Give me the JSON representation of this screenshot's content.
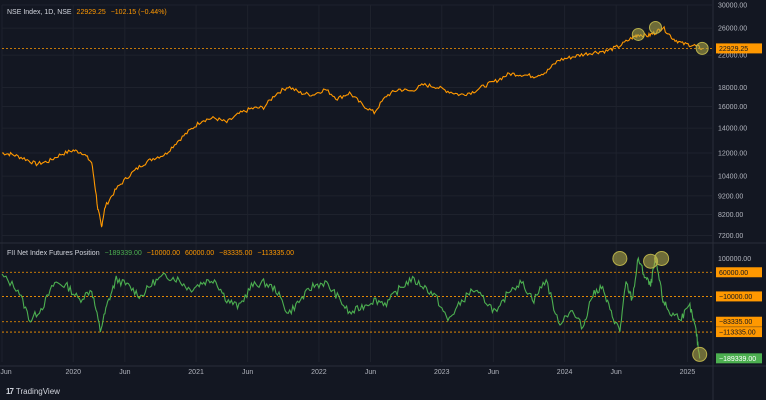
{
  "colors": {
    "background": "#131722",
    "price_line": "#ff9800",
    "indicator_line": "#4caf50",
    "grid": "#1e222d",
    "axis_text": "#b2b5be",
    "separator": "#2a2e39",
    "ref_line": "#ff9800",
    "highlight": "#b8b04a"
  },
  "header": {
    "symbol": "NSE Index, 1D, NSE",
    "last_price": "22929.25",
    "change": "−102.15 (−0.44%)"
  },
  "indicator_header": {
    "name": "FII Net Index Futures Position",
    "values": [
      "−189339.00",
      "−10000.00",
      "60000.00",
      "−83335.00",
      "−113335.00"
    ]
  },
  "footer": {
    "brand": "TradingView",
    "brand_icon": "tradingview-logo-icon"
  },
  "chart_data": [
    {
      "type": "line",
      "title": "NSE Index, 1D, NSE",
      "scale": "log",
      "ylim": [
        7000,
        30000
      ],
      "y_ticks": [
        "30000.00",
        "26000.00",
        "22000.00",
        "18000.00",
        "16000.00",
        "14000.00",
        "12000.00",
        "10400.00",
        "9200.00",
        "8200.00",
        "7200.00"
      ],
      "x_ticks": [
        "Jun",
        "2020",
        "Jun",
        "2021",
        "Jun",
        "2022",
        "Jun",
        "2023",
        "Jun",
        "2024",
        "Jun",
        "2025"
      ],
      "last_value_label": "22929.25",
      "series": [
        {
          "x": [
            2019.42,
            2019.5,
            2019.6,
            2019.7,
            2019.8,
            2019.9,
            2020.0,
            2020.08,
            2020.15,
            2020.2,
            2020.23,
            2020.26,
            2020.35,
            2020.45,
            2020.55,
            2020.65,
            2020.75,
            2020.85,
            2020.95,
            2021.05,
            2021.15,
            2021.25,
            2021.35,
            2021.45,
            2021.55,
            2021.65,
            2021.75,
            2021.85,
            2021.95,
            2022.05,
            2022.15,
            2022.25,
            2022.35,
            2022.45,
            2022.55,
            2022.65,
            2022.75,
            2022.85,
            2022.95,
            2023.05,
            2023.15,
            2023.25,
            2023.35,
            2023.45,
            2023.55,
            2023.65,
            2023.75,
            2023.85,
            2023.95,
            2024.05,
            2024.15,
            2024.25,
            2024.35,
            2024.45,
            2024.55,
            2024.6,
            2024.68,
            2024.74,
            2024.8,
            2024.88,
            2024.96,
            2025.05,
            2025.12
          ],
          "values": [
            12000,
            11900,
            11600,
            11200,
            11400,
            11900,
            12200,
            12000,
            11300,
            8500,
            7600,
            8600,
            9600,
            10400,
            11100,
            11600,
            11900,
            12900,
            13800,
            14700,
            14900,
            14500,
            15300,
            15800,
            15900,
            17300,
            18100,
            17400,
            17200,
            17800,
            16800,
            17400,
            16200,
            15400,
            17100,
            17800,
            17600,
            18300,
            18100,
            17600,
            17200,
            17500,
            18200,
            18800,
            19600,
            19500,
            19300,
            19800,
            21300,
            21700,
            22100,
            22400,
            22600,
            23300,
            24500,
            25000,
            24800,
            25300,
            26100,
            24400,
            23600,
            23400,
            22900
          ]
        }
      ],
      "annotations": [
        {
          "x": 2024.6,
          "y": 25000,
          "type": "circle"
        },
        {
          "x": 2024.74,
          "y": 26100,
          "type": "circle"
        },
        {
          "x": 2025.12,
          "y": 22929,
          "type": "circle"
        }
      ]
    },
    {
      "type": "line",
      "title": "FII Net Index Futures Position",
      "ylim": [
        -200000,
        110000
      ],
      "y_ticks": [
        "100000.00"
      ],
      "reference_lines": [
        {
          "value": 60000,
          "label": "60000.00"
        },
        {
          "value": -10000,
          "label": "−10000.00"
        },
        {
          "value": -83335,
          "label": "−83335.00"
        },
        {
          "value": -113335,
          "label": "−113335.00"
        }
      ],
      "last_value_label": "−189339.00",
      "series": [
        {
          "x": [
            2019.42,
            2019.55,
            2019.65,
            2019.75,
            2019.85,
            2019.95,
            2020.05,
            2020.15,
            2020.22,
            2020.28,
            2020.35,
            2020.45,
            2020.55,
            2020.65,
            2020.75,
            2020.85,
            2020.95,
            2021.05,
            2021.15,
            2021.25,
            2021.35,
            2021.45,
            2021.55,
            2021.65,
            2021.75,
            2021.85,
            2021.95,
            2022.05,
            2022.15,
            2022.25,
            2022.35,
            2022.45,
            2022.55,
            2022.65,
            2022.75,
            2022.85,
            2022.95,
            2023.05,
            2023.15,
            2023.25,
            2023.35,
            2023.45,
            2023.55,
            2023.65,
            2023.75,
            2023.85,
            2023.95,
            2024.05,
            2024.15,
            2024.22,
            2024.3,
            2024.38,
            2024.45,
            2024.5,
            2024.55,
            2024.6,
            2024.65,
            2024.7,
            2024.74,
            2024.8,
            2024.86,
            2024.95,
            2025.02,
            2025.07,
            2025.1
          ],
          "values": [
            50000,
            10000,
            -80000,
            -40000,
            30000,
            20000,
            -20000,
            10000,
            -110000,
            -30000,
            40000,
            20000,
            -10000,
            30000,
            50000,
            40000,
            10000,
            30000,
            40000,
            -20000,
            -40000,
            20000,
            30000,
            10000,
            -60000,
            -20000,
            20000,
            30000,
            -10000,
            -60000,
            -40000,
            -20000,
            -30000,
            10000,
            40000,
            20000,
            -10000,
            -80000,
            -30000,
            10000,
            -20000,
            -60000,
            10000,
            30000,
            -20000,
            40000,
            -90000,
            -50000,
            -100000,
            -10000,
            20000,
            -60000,
            -110000,
            30000,
            -20000,
            100000,
            50000,
            20000,
            100000,
            -20000,
            -60000,
            -70000,
            -40000,
            -110000,
            -190000
          ]
        }
      ],
      "annotations": [
        {
          "x": 2024.45,
          "y": 100000,
          "type": "circle"
        },
        {
          "x": 2024.7,
          "y": 92000,
          "type": "circle"
        },
        {
          "x": 2024.79,
          "y": 100000,
          "type": "circle"
        },
        {
          "x": 2025.1,
          "y": -178000,
          "type": "circle"
        }
      ]
    }
  ]
}
